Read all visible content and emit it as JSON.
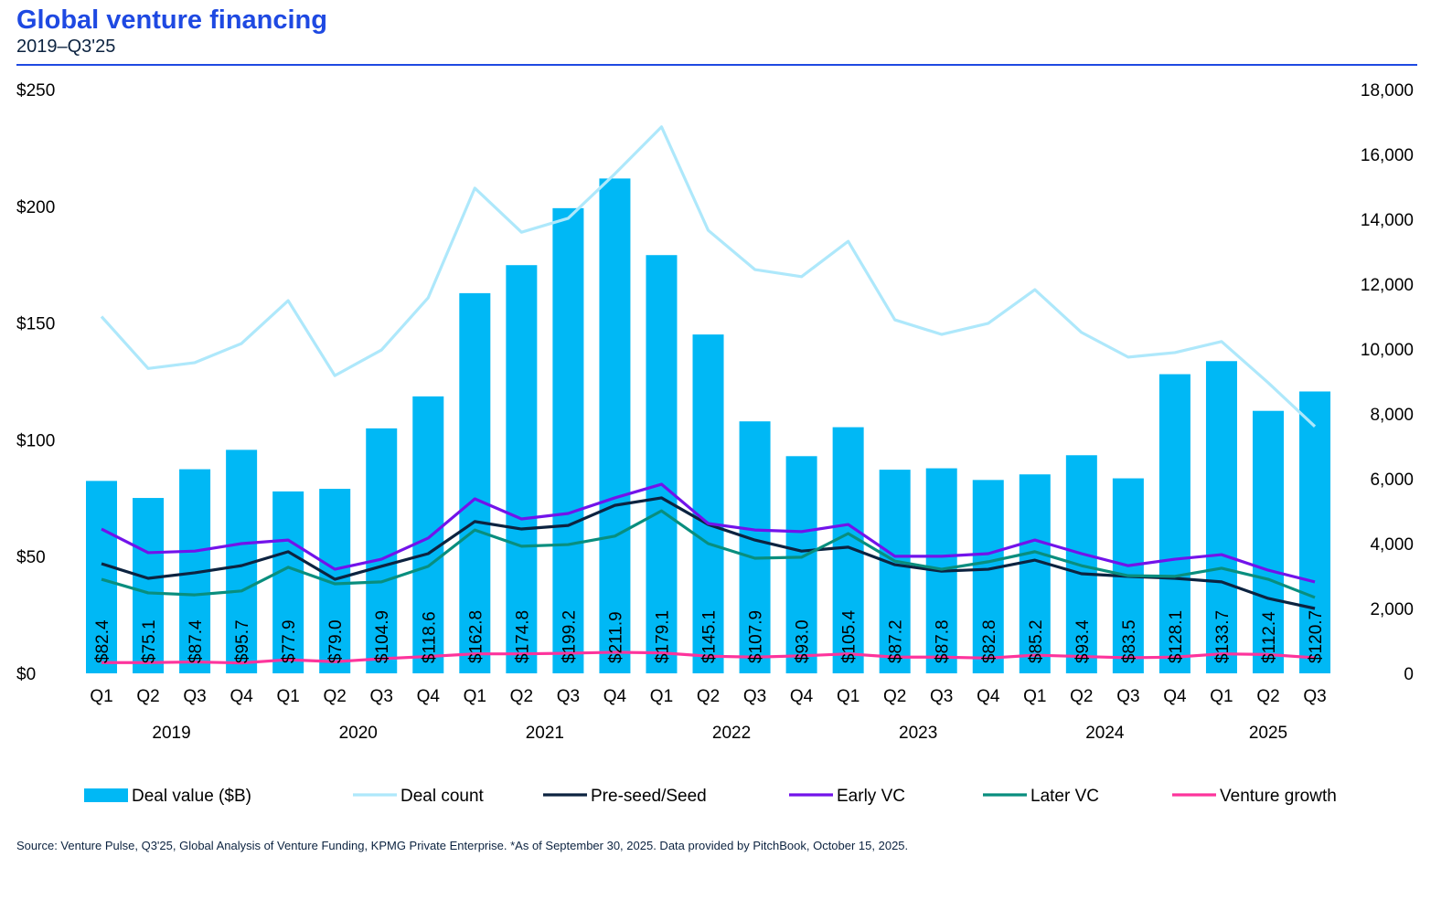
{
  "header": {
    "title": "Global venture financing",
    "subtitle": "2019–Q3'25"
  },
  "source": "Source: Venture Pulse, Q3'25, Global Analysis of Venture Funding, KPMG Private Enterprise. *As of September 30, 2025. Data provided by PitchBook, October 15, 2025.",
  "chart_data": {
    "type": "bar",
    "title": "Global venture financing",
    "subtitle": "2019–Q3'25",
    "categories": [
      "Q1",
      "Q2",
      "Q3",
      "Q4",
      "Q1",
      "Q2",
      "Q3",
      "Q4",
      "Q1",
      "Q2",
      "Q3",
      "Q4",
      "Q1",
      "Q2",
      "Q3",
      "Q4",
      "Q1",
      "Q2",
      "Q3",
      "Q4",
      "Q1",
      "Q2",
      "Q3",
      "Q4",
      "Q1",
      "Q2",
      "Q3"
    ],
    "years": [
      {
        "label": "2019",
        "start": 0,
        "end": 3
      },
      {
        "label": "2020",
        "start": 4,
        "end": 7
      },
      {
        "label": "2021",
        "start": 8,
        "end": 11
      },
      {
        "label": "2022",
        "start": 12,
        "end": 15
      },
      {
        "label": "2023",
        "start": 16,
        "end": 19
      },
      {
        "label": "2024",
        "start": 20,
        "end": 23
      },
      {
        "label": "2025",
        "start": 24,
        "end": 26
      }
    ],
    "y_left": {
      "range": [
        0,
        250
      ],
      "ticks": [
        0,
        50,
        100,
        150,
        200,
        250
      ],
      "tick_labels": [
        "$0",
        "$50",
        "$100",
        "$150",
        "$200",
        "$250"
      ]
    },
    "y_right": {
      "range": [
        0,
        18000
      ],
      "ticks": [
        0,
        2000,
        4000,
        6000,
        8000,
        10000,
        12000,
        14000,
        16000,
        18000
      ],
      "tick_labels": [
        "0",
        "2,000",
        "4,000",
        "6,000",
        "8,000",
        "10,000",
        "12,000",
        "14,000",
        "16,000",
        "18,000"
      ]
    },
    "grid": false,
    "legend_placement": "bottom",
    "series": [
      {
        "name": "Deal value ($B)",
        "type": "bar",
        "axis": "left",
        "color": "#00b8f5",
        "values": [
          82.4,
          75.1,
          87.4,
          95.7,
          77.9,
          79.0,
          104.9,
          118.6,
          162.8,
          174.8,
          199.2,
          211.9,
          179.1,
          145.1,
          107.9,
          93.0,
          105.4,
          87.2,
          87.8,
          82.8,
          85.2,
          93.4,
          83.5,
          128.1,
          133.7,
          112.4,
          120.7
        ],
        "labels": [
          "$82.4",
          "$75.1",
          "$87.4",
          "$95.7",
          "$77.9",
          "$79.0",
          "$104.9",
          "$118.6",
          "$162.8",
          "$174.8",
          "$199.2",
          "$211.9",
          "$179.1",
          "$145.1",
          "$107.9",
          "$93.0",
          "$105.4",
          "$87.2",
          "$87.8",
          "$82.8",
          "$85.2",
          "$93.4",
          "$83.5",
          "$128.1",
          "$133.7",
          "$112.4",
          "$120.7"
        ]
      },
      {
        "name": "Deal count",
        "type": "line",
        "axis": "right",
        "color": "#aee8fb",
        "values": [
          11000,
          9400,
          9580,
          10170,
          11490,
          9180,
          9970,
          11580,
          14960,
          13600,
          14030,
          15400,
          16850,
          13660,
          12450,
          12230,
          13320,
          10900,
          10450,
          10790,
          11830,
          10510,
          9750,
          9890,
          10230,
          8960,
          7610
        ]
      },
      {
        "name": "Pre-seed/Seed",
        "type": "line",
        "axis": "right",
        "color": "#0c2340",
        "values": [
          3380,
          2930,
          3100,
          3320,
          3750,
          2900,
          3300,
          3690,
          4680,
          4450,
          4560,
          5180,
          5410,
          4590,
          4110,
          3770,
          3890,
          3350,
          3150,
          3210,
          3490,
          3070,
          2990,
          2930,
          2820,
          2310,
          2000
        ]
      },
      {
        "name": "Early VC",
        "type": "line",
        "axis": "right",
        "color": "#7213ea",
        "values": [
          4450,
          3720,
          3770,
          4000,
          4110,
          3210,
          3520,
          4170,
          5380,
          4760,
          4930,
          5410,
          5830,
          4620,
          4420,
          4370,
          4590,
          3610,
          3610,
          3690,
          4110,
          3690,
          3320,
          3520,
          3660,
          3180,
          2820
        ]
      },
      {
        "name": "Later VC",
        "type": "line",
        "axis": "right",
        "color": "#098e7e",
        "values": [
          2900,
          2480,
          2420,
          2540,
          3270,
          2760,
          2820,
          3300,
          4420,
          3920,
          3970,
          4230,
          5010,
          4000,
          3550,
          3580,
          4310,
          3460,
          3210,
          3440,
          3750,
          3320,
          3010,
          2990,
          3240,
          2900,
          2340
        ]
      },
      {
        "name": "Venture growth",
        "type": "line",
        "axis": "right",
        "color": "#fd349c",
        "values": [
          330,
          330,
          350,
          320,
          420,
          360,
          450,
          520,
          600,
          600,
          620,
          650,
          630,
          530,
          500,
          540,
          600,
          500,
          500,
          470,
          560,
          520,
          480,
          500,
          600,
          580,
          480
        ]
      }
    ]
  }
}
